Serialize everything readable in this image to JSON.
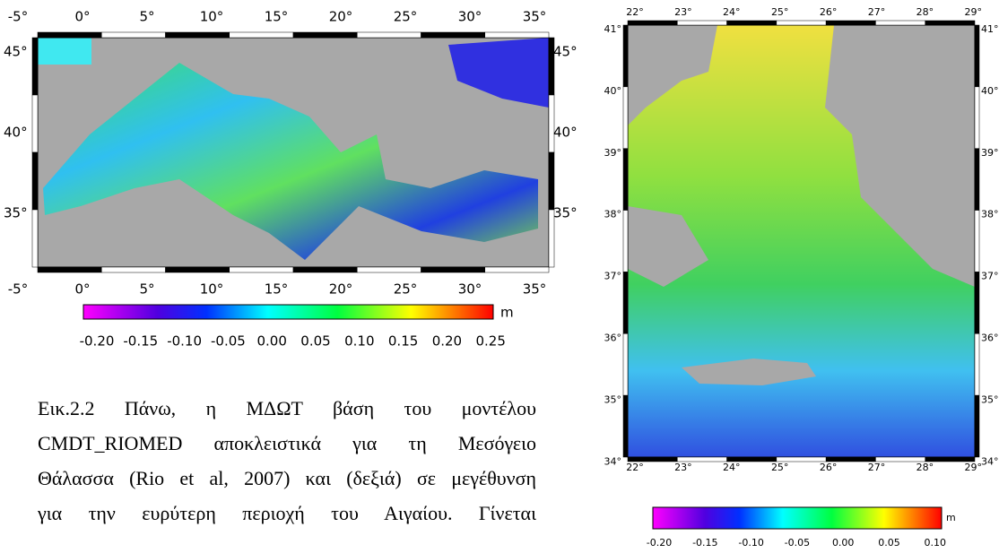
{
  "left_figure": {
    "x_ticks": [
      "-5°",
      "0°",
      "5°",
      "10°",
      "15°",
      "20°",
      "25°",
      "30°",
      "35°"
    ],
    "y_ticks": [
      "45°",
      "40°",
      "35°"
    ],
    "colorbar": {
      "unit": "m",
      "ticks": [
        "-0.20",
        "-0.15",
        "-0.10",
        "-0.05",
        "0.00",
        "0.05",
        "0.10",
        "0.15",
        "0.20",
        "0.25"
      ]
    }
  },
  "right_figure": {
    "x_ticks": [
      "22°",
      "23°",
      "24°",
      "25°",
      "26°",
      "27°",
      "28°",
      "29°"
    ],
    "y_ticks": [
      "41°",
      "40°",
      "39°",
      "38°",
      "37°",
      "36°",
      "35°",
      "34°"
    ],
    "colorbar": {
      "unit": "m",
      "ticks": [
        "-0.20",
        "-0.15",
        "-0.10",
        "-0.05",
        "0.00",
        "0.05",
        "0.10"
      ]
    }
  },
  "caption": {
    "lines": [
      "Εικ.2.2 Πάνω, η ΜΔΩΤ βάση του μοντέλου",
      "CMDT_RIOMED αποκλειστικά για τη Μεσόγειο",
      "Θάλασσα (Rio et al, 2007) και (δεξιά) σε μεγέθυνση",
      "για την ευρύτερη περιοχή του Αιγαίου. Γίνεται"
    ]
  }
}
